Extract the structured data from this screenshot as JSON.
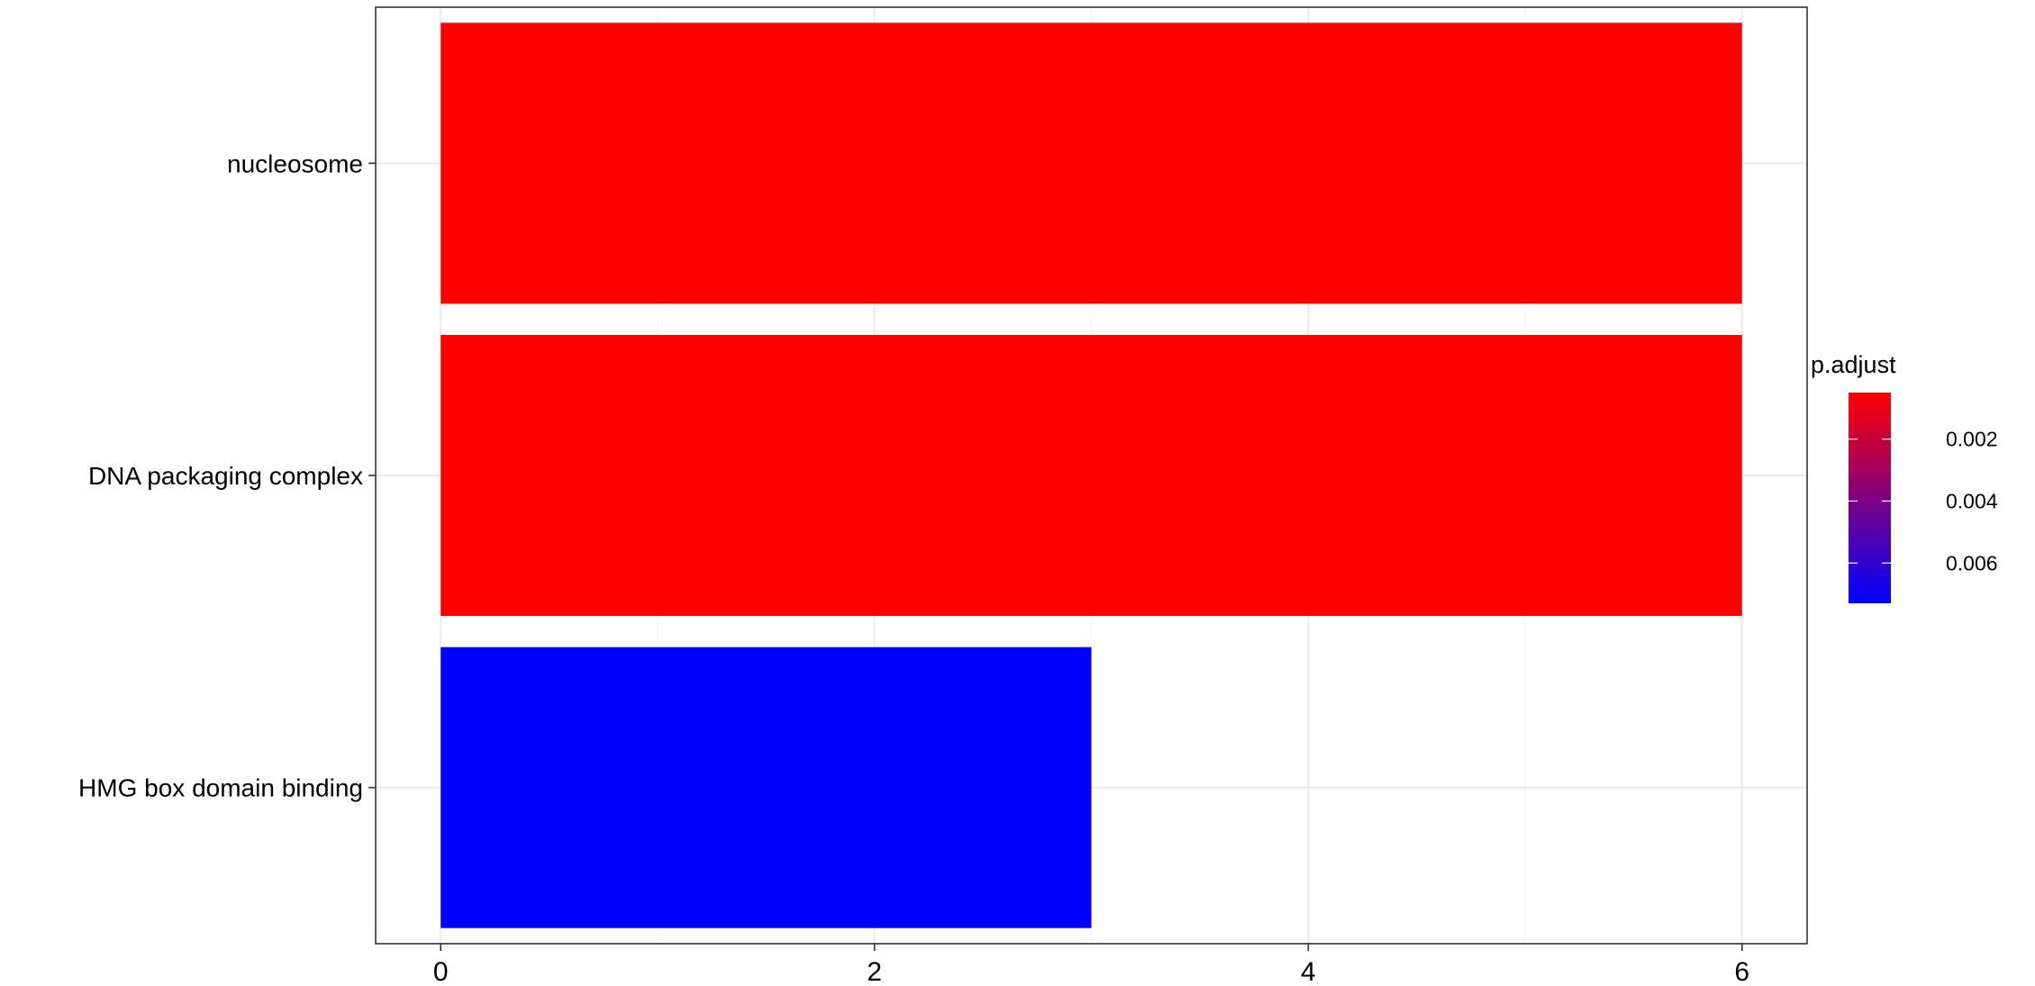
{
  "chart_data": {
    "type": "bar",
    "orientation": "horizontal",
    "categories": [
      "nucleosome",
      "DNA packaging complex",
      "HMG box domain binding"
    ],
    "values": [
      6,
      6,
      3
    ],
    "p_adjust": [
      0.0005,
      0.0005,
      0.0073
    ],
    "xlim": [
      -0.3,
      6.3
    ],
    "x_ticks": [
      0,
      2,
      4,
      6
    ],
    "grid": true,
    "legend": {
      "title": "p.adjust",
      "placement": "right",
      "range": [
        0.0005,
        0.0073
      ],
      "ticks": [
        0.002,
        0.004,
        0.006
      ],
      "tick_labels": [
        "0.002",
        "0.004",
        "0.006"
      ],
      "low_color": "#ff0000",
      "high_color": "#0000ff"
    }
  },
  "colors": {
    "panel_border": "#333333",
    "grid_major": "#ebebeb",
    "grid_minor": "#f5f5f5"
  }
}
